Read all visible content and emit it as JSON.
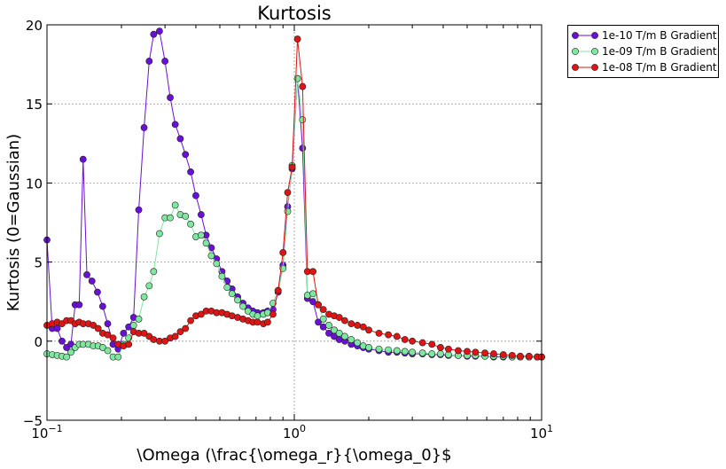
{
  "chart_data": {
    "type": "line",
    "title": "Kurtosis",
    "xlabel": "\\Omega (\\frac{\\omega_r}{\\omega_0}$",
    "ylabel": "Kurtosis (0=Gaussian)",
    "xscale": "log",
    "xlim": [
      0.1,
      10
    ],
    "ylim": [
      -5,
      20
    ],
    "yticks": [
      "−5",
      "0",
      "5",
      "10",
      "15",
      "20"
    ],
    "xticks": [
      {
        "base": "10",
        "exp": "−1"
      },
      {
        "base": "10",
        "exp": "0"
      },
      {
        "base": "10",
        "exp": "1"
      }
    ],
    "grid": true,
    "legend_position": "outside-top-right",
    "series": [
      {
        "name": "1e-10 T/m B Gradient",
        "color": "#6a0fd6",
        "points": [
          [
            0.1,
            6.4
          ],
          [
            0.105,
            0.8
          ],
          [
            0.11,
            0.8
          ],
          [
            0.115,
            0.0
          ],
          [
            0.12,
            -0.4
          ],
          [
            0.125,
            -0.2
          ],
          [
            0.13,
            2.3
          ],
          [
            0.135,
            2.3
          ],
          [
            0.14,
            11.5
          ],
          [
            0.145,
            4.2
          ],
          [
            0.152,
            3.8
          ],
          [
            0.16,
            3.1
          ],
          [
            0.168,
            2.2
          ],
          [
            0.176,
            1.1
          ],
          [
            0.185,
            -0.2
          ],
          [
            0.194,
            -0.5
          ],
          [
            0.204,
            0.5
          ],
          [
            0.214,
            0.9
          ],
          [
            0.224,
            1.5
          ],
          [
            0.235,
            8.3
          ],
          [
            0.247,
            13.5
          ],
          [
            0.259,
            17.7
          ],
          [
            0.27,
            19.4
          ],
          [
            0.285,
            19.6
          ],
          [
            0.3,
            17.7
          ],
          [
            0.315,
            15.4
          ],
          [
            0.33,
            13.7
          ],
          [
            0.346,
            12.8
          ],
          [
            0.363,
            11.8
          ],
          [
            0.381,
            10.7
          ],
          [
            0.4,
            9.2
          ],
          [
            0.42,
            8.0
          ],
          [
            0.44,
            6.7
          ],
          [
            0.462,
            5.9
          ],
          [
            0.485,
            5.2
          ],
          [
            0.51,
            4.4
          ],
          [
            0.535,
            3.8
          ],
          [
            0.56,
            3.3
          ],
          [
            0.59,
            2.8
          ],
          [
            0.62,
            2.4
          ],
          [
            0.65,
            2.1
          ],
          [
            0.68,
            1.9
          ],
          [
            0.71,
            1.8
          ],
          [
            0.75,
            1.8
          ],
          [
            0.78,
            1.9
          ],
          [
            0.82,
            2.0
          ],
          [
            0.86,
            3.1
          ],
          [
            0.9,
            4.8
          ],
          [
            0.94,
            8.5
          ],
          [
            0.98,
            10.9
          ],
          [
            1.03,
            16.6
          ],
          [
            1.08,
            12.2
          ],
          [
            1.13,
            2.7
          ],
          [
            1.19,
            2.5
          ],
          [
            1.25,
            1.2
          ],
          [
            1.31,
            0.9
          ],
          [
            1.38,
            0.5
          ],
          [
            1.45,
            0.3
          ],
          [
            1.52,
            0.1
          ],
          [
            1.6,
            0.0
          ],
          [
            1.7,
            -0.2
          ],
          [
            1.8,
            -0.3
          ],
          [
            1.9,
            -0.4
          ],
          [
            2.0,
            -0.5
          ],
          [
            2.2,
            -0.6
          ],
          [
            2.4,
            -0.7
          ],
          [
            2.6,
            -0.7
          ],
          [
            2.8,
            -0.75
          ],
          [
            3.0,
            -0.8
          ],
          [
            3.3,
            -0.8
          ],
          [
            3.6,
            -0.85
          ],
          [
            3.9,
            -0.85
          ],
          [
            4.2,
            -0.9
          ],
          [
            4.6,
            -0.9
          ],
          [
            5.0,
            -0.95
          ],
          [
            5.4,
            -0.95
          ],
          [
            5.9,
            -0.95
          ],
          [
            6.4,
            -1.0
          ],
          [
            7.0,
            -1.0
          ],
          [
            7.6,
            -1.0
          ],
          [
            8.2,
            -1.0
          ],
          [
            8.9,
            -1.0
          ],
          [
            9.6,
            -1.0
          ],
          [
            10.0,
            -1.0
          ]
        ]
      },
      {
        "name": "1e-09 T/m B Gradient",
        "color": "#7fe8a0",
        "points": [
          [
            0.1,
            -0.8
          ],
          [
            0.105,
            -0.85
          ],
          [
            0.11,
            -0.9
          ],
          [
            0.115,
            -0.95
          ],
          [
            0.12,
            -1.0
          ],
          [
            0.125,
            -0.7
          ],
          [
            0.13,
            -0.4
          ],
          [
            0.135,
            -0.2
          ],
          [
            0.14,
            -0.2
          ],
          [
            0.147,
            -0.2
          ],
          [
            0.154,
            -0.3
          ],
          [
            0.161,
            -0.3
          ],
          [
            0.168,
            -0.4
          ],
          [
            0.176,
            -0.6
          ],
          [
            0.185,
            -1.0
          ],
          [
            0.194,
            -1.0
          ],
          [
            0.204,
            -0.2
          ],
          [
            0.214,
            0.2
          ],
          [
            0.224,
            1.0
          ],
          [
            0.235,
            1.4
          ],
          [
            0.247,
            2.8
          ],
          [
            0.259,
            3.5
          ],
          [
            0.27,
            4.4
          ],
          [
            0.285,
            6.8
          ],
          [
            0.3,
            7.8
          ],
          [
            0.315,
            7.8
          ],
          [
            0.33,
            8.6
          ],
          [
            0.346,
            8.0
          ],
          [
            0.363,
            7.9
          ],
          [
            0.381,
            7.4
          ],
          [
            0.4,
            6.6
          ],
          [
            0.42,
            6.7
          ],
          [
            0.44,
            6.2
          ],
          [
            0.462,
            5.4
          ],
          [
            0.485,
            4.9
          ],
          [
            0.51,
            4.1
          ],
          [
            0.535,
            3.4
          ],
          [
            0.56,
            3.0
          ],
          [
            0.59,
            2.6
          ],
          [
            0.62,
            2.2
          ],
          [
            0.65,
            1.9
          ],
          [
            0.68,
            1.7
          ],
          [
            0.71,
            1.6
          ],
          [
            0.75,
            1.7
          ],
          [
            0.78,
            1.8
          ],
          [
            0.82,
            2.4
          ],
          [
            0.86,
            3.2
          ],
          [
            0.9,
            4.6
          ],
          [
            0.94,
            8.2
          ],
          [
            0.98,
            11.1
          ],
          [
            1.03,
            16.6
          ],
          [
            1.08,
            14.0
          ],
          [
            1.13,
            2.9
          ],
          [
            1.19,
            3.0
          ],
          [
            1.25,
            2.3
          ],
          [
            1.31,
            1.4
          ],
          [
            1.38,
            1.0
          ],
          [
            1.45,
            0.7
          ],
          [
            1.52,
            0.5
          ],
          [
            1.6,
            0.3
          ],
          [
            1.7,
            0.1
          ],
          [
            1.8,
            -0.1
          ],
          [
            1.9,
            -0.3
          ],
          [
            2.0,
            -0.4
          ],
          [
            2.2,
            -0.5
          ],
          [
            2.4,
            -0.55
          ],
          [
            2.6,
            -0.6
          ],
          [
            2.8,
            -0.65
          ],
          [
            3.0,
            -0.7
          ],
          [
            3.3,
            -0.75
          ],
          [
            3.6,
            -0.8
          ],
          [
            3.9,
            -0.8
          ],
          [
            4.2,
            -0.85
          ],
          [
            4.6,
            -0.9
          ],
          [
            5.0,
            -0.9
          ],
          [
            5.4,
            -0.9
          ],
          [
            5.9,
            -0.95
          ],
          [
            6.4,
            -0.95
          ],
          [
            7.0,
            -0.95
          ],
          [
            7.6,
            -1.0
          ],
          [
            8.2,
            -1.0
          ],
          [
            8.9,
            -1.0
          ],
          [
            9.6,
            -1.0
          ],
          [
            10.0,
            -1.0
          ]
        ]
      },
      {
        "name": "1e-08 T/m B Gradient",
        "color": "#e01414",
        "points": [
          [
            0.1,
            1.0
          ],
          [
            0.105,
            1.1
          ],
          [
            0.11,
            1.2
          ],
          [
            0.115,
            1.1
          ],
          [
            0.12,
            1.3
          ],
          [
            0.125,
            1.3
          ],
          [
            0.13,
            1.1
          ],
          [
            0.135,
            1.2
          ],
          [
            0.14,
            1.1
          ],
          [
            0.147,
            1.1
          ],
          [
            0.154,
            1.0
          ],
          [
            0.161,
            0.8
          ],
          [
            0.168,
            0.5
          ],
          [
            0.176,
            0.4
          ],
          [
            0.185,
            0.2
          ],
          [
            0.194,
            -0.2
          ],
          [
            0.204,
            -0.3
          ],
          [
            0.214,
            -0.2
          ],
          [
            0.224,
            0.6
          ],
          [
            0.235,
            0.5
          ],
          [
            0.247,
            0.5
          ],
          [
            0.259,
            0.3
          ],
          [
            0.27,
            0.1
          ],
          [
            0.285,
            0.0
          ],
          [
            0.3,
            0.0
          ],
          [
            0.315,
            0.2
          ],
          [
            0.33,
            0.3
          ],
          [
            0.346,
            0.6
          ],
          [
            0.363,
            0.8
          ],
          [
            0.381,
            1.3
          ],
          [
            0.4,
            1.6
          ],
          [
            0.42,
            1.7
          ],
          [
            0.44,
            1.9
          ],
          [
            0.462,
            1.9
          ],
          [
            0.485,
            1.8
          ],
          [
            0.51,
            1.8
          ],
          [
            0.535,
            1.7
          ],
          [
            0.56,
            1.6
          ],
          [
            0.59,
            1.5
          ],
          [
            0.62,
            1.4
          ],
          [
            0.65,
            1.3
          ],
          [
            0.68,
            1.2
          ],
          [
            0.71,
            1.2
          ],
          [
            0.75,
            1.1
          ],
          [
            0.78,
            1.2
          ],
          [
            0.82,
            1.7
          ],
          [
            0.86,
            3.2
          ],
          [
            0.9,
            5.6
          ],
          [
            0.94,
            9.4
          ],
          [
            0.98,
            11.0
          ],
          [
            1.03,
            19.1
          ],
          [
            1.08,
            16.1
          ],
          [
            1.13,
            4.4
          ],
          [
            1.19,
            4.4
          ],
          [
            1.25,
            2.3
          ],
          [
            1.31,
            2.0
          ],
          [
            1.38,
            1.7
          ],
          [
            1.45,
            1.6
          ],
          [
            1.52,
            1.5
          ],
          [
            1.6,
            1.3
          ],
          [
            1.7,
            1.1
          ],
          [
            1.8,
            1.0
          ],
          [
            1.9,
            0.9
          ],
          [
            2.0,
            0.7
          ],
          [
            2.2,
            0.5
          ],
          [
            2.4,
            0.4
          ],
          [
            2.6,
            0.3
          ],
          [
            2.8,
            0.1
          ],
          [
            3.0,
            0.0
          ],
          [
            3.3,
            -0.1
          ],
          [
            3.6,
            -0.2
          ],
          [
            3.9,
            -0.4
          ],
          [
            4.2,
            -0.5
          ],
          [
            4.6,
            -0.6
          ],
          [
            5.0,
            -0.65
          ],
          [
            5.4,
            -0.7
          ],
          [
            5.9,
            -0.75
          ],
          [
            6.4,
            -0.8
          ],
          [
            7.0,
            -0.85
          ],
          [
            7.6,
            -0.9
          ],
          [
            8.2,
            -0.95
          ],
          [
            8.9,
            -0.95
          ],
          [
            9.6,
            -1.0
          ],
          [
            10.0,
            -1.0
          ]
        ]
      }
    ]
  }
}
